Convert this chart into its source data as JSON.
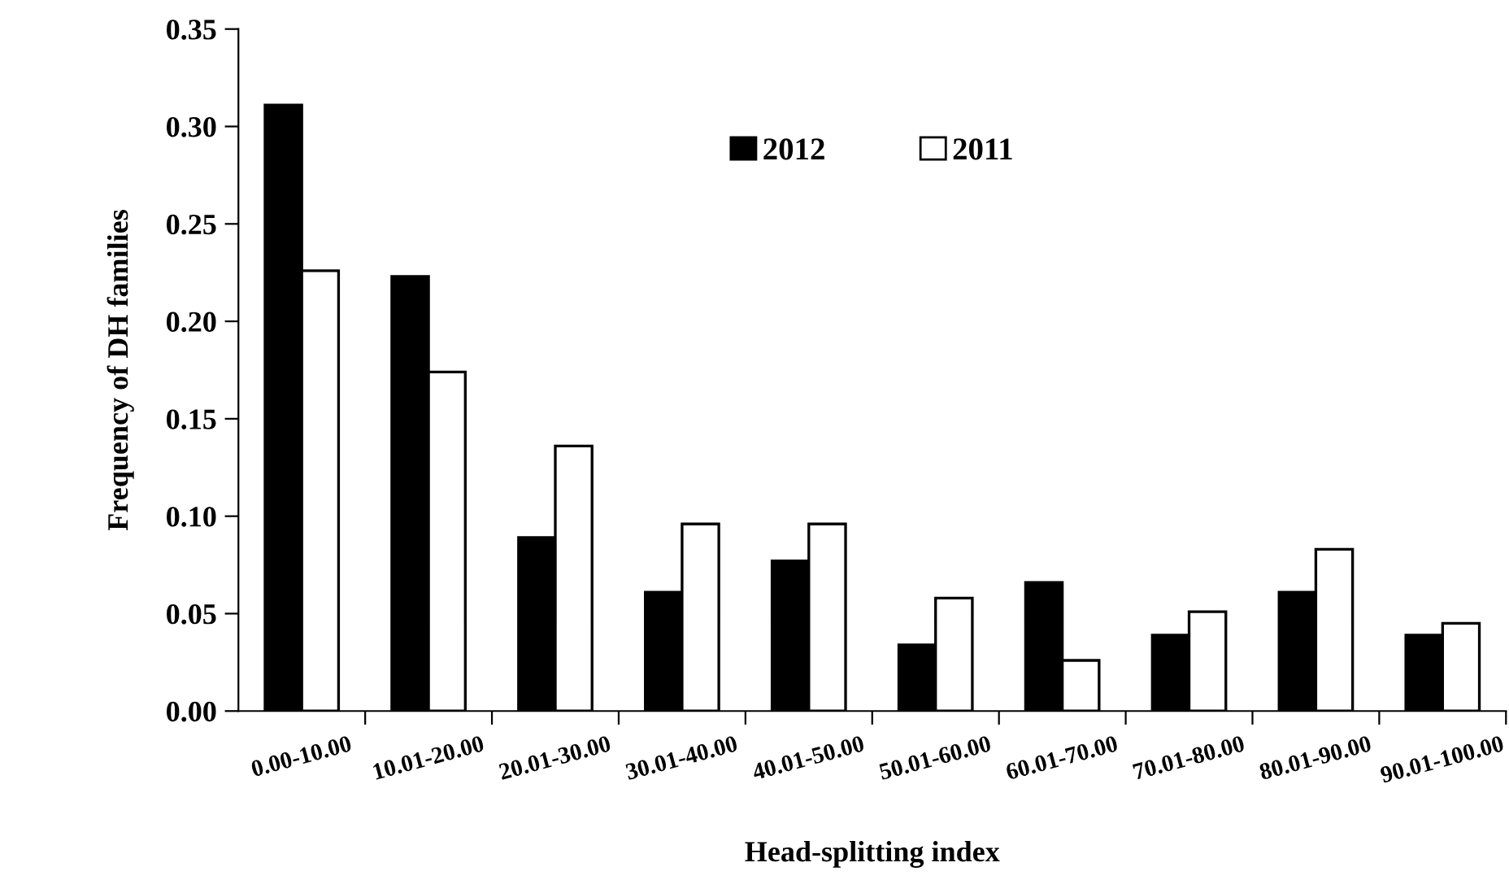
{
  "chart_data": {
    "type": "bar",
    "xlabel": "Head-splitting index",
    "ylabel": "Frequency of DH families",
    "categories": [
      "0.00-10.00",
      "10.01-20.00",
      "20.01-30.00",
      "30.01-40.00",
      "40.01-50.00",
      "50.01-60.00",
      "60.01-70.00",
      "70.01-80.00",
      "80.01-90.00",
      "90.01-100.00"
    ],
    "series": [
      {
        "name": "2012",
        "color": "#000000",
        "values": [
          0.311,
          0.223,
          0.089,
          0.061,
          0.077,
          0.034,
          0.066,
          0.039,
          0.061,
          0.039
        ]
      },
      {
        "name": "2011",
        "color": "#ffffff",
        "values": [
          0.226,
          0.174,
          0.136,
          0.096,
          0.096,
          0.058,
          0.026,
          0.051,
          0.083,
          0.045
        ]
      }
    ],
    "ylim": [
      0,
      0.35
    ],
    "yticks": [
      {
        "value": 0,
        "label": "0.00"
      },
      {
        "value": 0.05,
        "label": "0.05"
      },
      {
        "value": 0.1,
        "label": "0.10"
      },
      {
        "value": 0.15,
        "label": "0.15"
      },
      {
        "value": 0.2,
        "label": "0.20"
      },
      {
        "value": 0.25,
        "label": "0.25"
      },
      {
        "value": 0.3,
        "label": "0.30"
      },
      {
        "value": 0.35,
        "label": "0.35"
      }
    ],
    "grid": false,
    "legend": "top"
  }
}
